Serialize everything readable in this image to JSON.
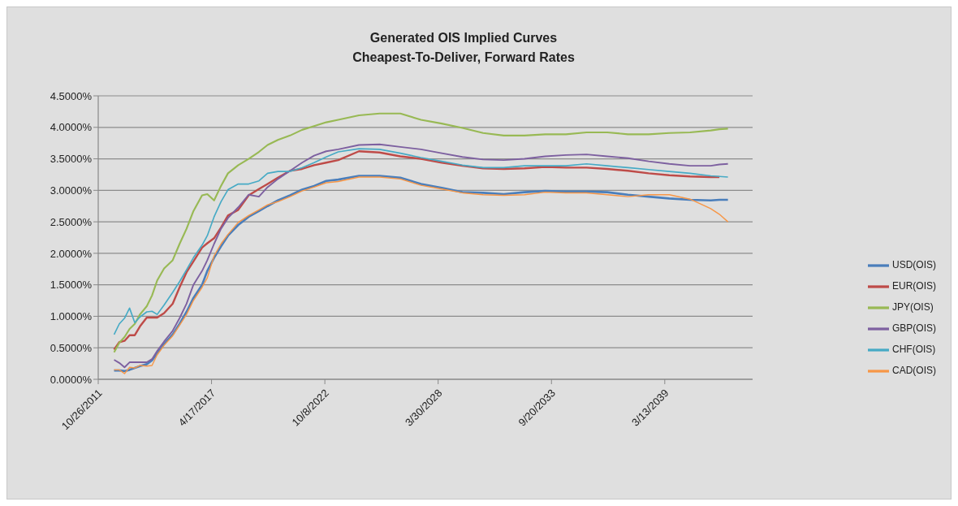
{
  "chart_data": {
    "type": "line",
    "title": "Generated OIS Implied Curves",
    "subtitle": "Cheapest-To-Deliver, Forward Rates",
    "x": [
      "2012-08",
      "2012-11",
      "2013-02",
      "2013-05",
      "2013-08",
      "2013-11",
      "2014-03",
      "2014-06",
      "2014-09",
      "2015-01",
      "2015-06",
      "2015-10",
      "2016-02",
      "2016-06",
      "2016-11",
      "2017-02",
      "2017-06",
      "2017-10",
      "2018-02",
      "2018-08",
      "2019-02",
      "2019-08",
      "2020-01",
      "2020-07",
      "2021-02",
      "2021-09",
      "2022-04",
      "2022-11",
      "2023-06",
      "2024-06",
      "2025-06",
      "2026-06",
      "2027-06",
      "2028-06",
      "2029-06",
      "2030-06",
      "2031-06",
      "2032-06",
      "2033-06",
      "2034-06",
      "2035-06",
      "2036-06",
      "2037-06",
      "2038-06",
      "2039-06",
      "2040-06",
      "2041-06",
      "2041-11",
      "2042-04"
    ],
    "series": [
      {
        "name": "USD(OIS)",
        "color": "#4a7ebb",
        "values": [
          0.14,
          0.14,
          0.13,
          0.15,
          0.18,
          0.21,
          0.24,
          0.3,
          0.41,
          0.56,
          0.71,
          0.88,
          1.07,
          1.29,
          1.5,
          1.72,
          1.93,
          2.11,
          2.28,
          2.45,
          2.58,
          2.67,
          2.75,
          2.84,
          2.92,
          3.01,
          3.07,
          3.15,
          3.17,
          3.23,
          3.23,
          3.2,
          3.1,
          3.04,
          2.97,
          2.96,
          2.94,
          2.97,
          2.99,
          2.98,
          2.98,
          2.97,
          2.93,
          2.9,
          2.87,
          2.85,
          2.84,
          2.85,
          2.85
        ]
      },
      {
        "name": "EUR(OIS)",
        "color": "#be4b48",
        "values": [
          0.47,
          0.59,
          0.61,
          0.7,
          0.7,
          0.84,
          0.98,
          0.98,
          0.98,
          1.05,
          1.2,
          1.46,
          1.7,
          1.87,
          2.09,
          2.16,
          2.24,
          2.41,
          2.6,
          2.69,
          2.92,
          3.02,
          3.1,
          3.2,
          3.31,
          3.34,
          3.4,
          3.44,
          3.48,
          3.62,
          3.6,
          3.54,
          3.5,
          3.44,
          3.39,
          3.35,
          3.34,
          3.35,
          3.37,
          3.36,
          3.36,
          3.34,
          3.31,
          3.27,
          3.24,
          3.22,
          3.21,
          3.21,
          null
        ]
      },
      {
        "name": "JPY(OIS)",
        "color": "#98b954",
        "values": [
          0.43,
          0.58,
          0.67,
          0.8,
          0.88,
          1.03,
          1.16,
          1.33,
          1.57,
          1.76,
          1.89,
          2.15,
          2.39,
          2.67,
          2.92,
          2.94,
          2.84,
          3.07,
          3.27,
          3.4,
          3.5,
          3.61,
          3.72,
          3.8,
          3.87,
          3.96,
          4.02,
          4.08,
          4.12,
          4.19,
          4.22,
          4.22,
          4.12,
          4.06,
          3.99,
          3.91,
          3.87,
          3.87,
          3.89,
          3.89,
          3.92,
          3.92,
          3.89,
          3.89,
          3.91,
          3.92,
          3.95,
          3.97,
          3.98
        ]
      },
      {
        "name": "GBP(OIS)",
        "color": "#7d60a0",
        "values": [
          0.31,
          0.26,
          0.19,
          0.27,
          0.27,
          0.27,
          0.27,
          0.32,
          0.45,
          0.6,
          0.77,
          0.97,
          1.2,
          1.5,
          1.72,
          1.89,
          2.15,
          2.39,
          2.56,
          2.73,
          2.93,
          2.9,
          3.05,
          3.18,
          3.31,
          3.44,
          3.55,
          3.62,
          3.65,
          3.72,
          3.73,
          3.69,
          3.65,
          3.59,
          3.53,
          3.49,
          3.48,
          3.5,
          3.54,
          3.56,
          3.57,
          3.54,
          3.51,
          3.46,
          3.42,
          3.39,
          3.39,
          3.41,
          3.42
        ]
      },
      {
        "name": "CHF(OIS)",
        "color": "#46aac5",
        "values": [
          0.71,
          0.88,
          0.97,
          1.13,
          0.9,
          0.99,
          1.07,
          1.08,
          1.03,
          1.18,
          1.38,
          1.55,
          1.74,
          1.93,
          2.13,
          2.28,
          2.58,
          2.82,
          3.01,
          3.1,
          3.1,
          3.15,
          3.27,
          3.3,
          3.3,
          3.36,
          3.44,
          3.53,
          3.61,
          3.66,
          3.65,
          3.59,
          3.52,
          3.46,
          3.4,
          3.36,
          3.36,
          3.39,
          3.39,
          3.39,
          3.42,
          3.39,
          3.36,
          3.33,
          3.3,
          3.27,
          3.23,
          3.22,
          3.21
        ]
      },
      {
        "name": "CAD(OIS)",
        "color": "#f79646",
        "values": [
          0.15,
          0.15,
          0.09,
          0.19,
          0.18,
          0.22,
          0.21,
          0.22,
          0.39,
          0.54,
          0.69,
          0.86,
          1.03,
          1.25,
          1.46,
          1.61,
          1.96,
          2.15,
          2.3,
          2.49,
          2.6,
          2.69,
          2.77,
          2.82,
          2.9,
          2.99,
          3.05,
          3.12,
          3.14,
          3.21,
          3.21,
          3.18,
          3.08,
          3.02,
          2.96,
          2.93,
          2.92,
          2.93,
          2.97,
          2.96,
          2.96,
          2.93,
          2.9,
          2.93,
          2.93,
          2.86,
          2.71,
          2.62,
          2.5
        ]
      }
    ],
    "xlim": [
      "2011-10-26",
      "2043-06-10"
    ],
    "xticks": [
      {
        "value": "2011-10-26",
        "label": "10/26/2011"
      },
      {
        "value": "2017-04-17",
        "label": "4/17/2017"
      },
      {
        "value": "2022-10-08",
        "label": "10/8/2022"
      },
      {
        "value": "2028-03-30",
        "label": "3/30/2028"
      },
      {
        "value": "2033-09-20",
        "label": "9/20/2033"
      },
      {
        "value": "2039-03-13",
        "label": "3/13/2039"
      }
    ],
    "ylim": [
      0,
      4.5
    ],
    "yticks": [
      {
        "value": 0,
        "label": "0.0000%"
      },
      {
        "value": 0.5,
        "label": "0.5000%"
      },
      {
        "value": 1,
        "label": "1.0000%"
      },
      {
        "value": 1.5,
        "label": "1.5000%"
      },
      {
        "value": 2,
        "label": "2.0000%"
      },
      {
        "value": 2.5,
        "label": "2.5000%"
      },
      {
        "value": 3,
        "label": "3.0000%"
      },
      {
        "value": 3.5,
        "label": "3.5000%"
      },
      {
        "value": 4,
        "label": "4.0000%"
      },
      {
        "value": 4.5,
        "label": "4.5000%"
      }
    ],
    "grid": "y",
    "legend": "right",
    "marker": "none",
    "line_style": "solid"
  }
}
